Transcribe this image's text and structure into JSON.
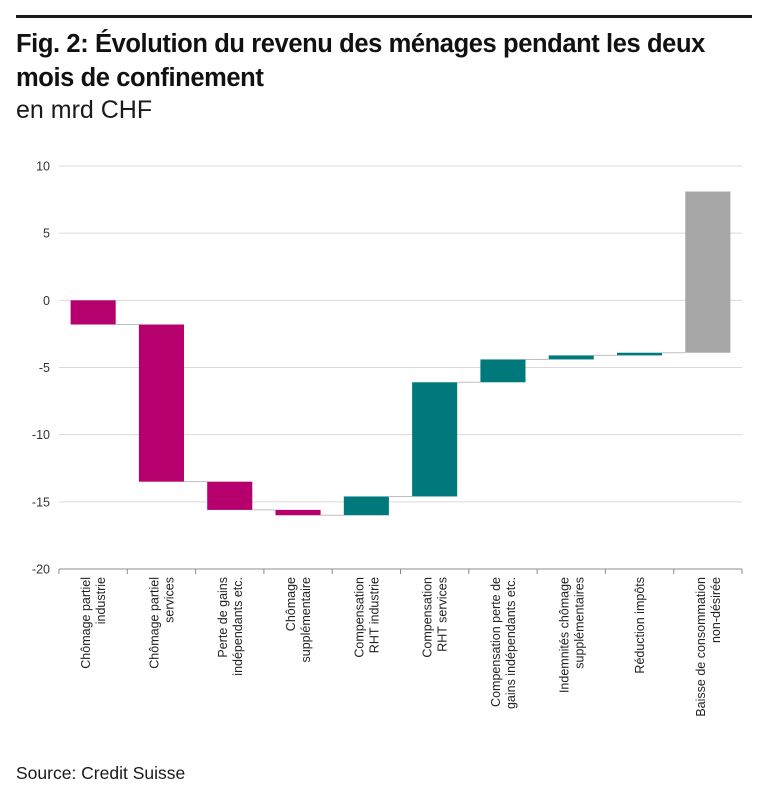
{
  "figure": {
    "title": "Fig. 2: Évolution du revenu des ménages pendant les deux mois de confinement",
    "subtitle": "en mrd CHF",
    "source": "Source: Credit Suisse"
  },
  "colors": {
    "magenta": "#b5006e",
    "teal": "#00797c",
    "gray": "#a6a6a6",
    "gridline": "#d9d9d9",
    "connector": "#bfbfbf"
  },
  "chart_data": {
    "type": "bar",
    "subtype": "waterfall",
    "ylim": [
      -20,
      10
    ],
    "yticks": [
      10,
      5,
      0,
      -5,
      -10,
      -15,
      -20
    ],
    "grid": true,
    "xlabel": "",
    "ylabel": "",
    "categories": [
      [
        "Chômage partiel",
        "industrie"
      ],
      [
        "Chômage partiel",
        "services"
      ],
      [
        "Perte de gains",
        "indépendants etc."
      ],
      [
        "Chômage",
        "supplémentaire"
      ],
      [
        "Compensation",
        "RHT industrie"
      ],
      [
        "Compensation",
        "RHT services"
      ],
      [
        "Compensation perte de",
        "gains indépendants etc."
      ],
      [
        "Indemnités chômage",
        "supplémentaires"
      ],
      [
        "Réduction impôts"
      ],
      [
        "Baisse de consommation",
        "non-désirée"
      ]
    ],
    "bars": [
      {
        "start": 0,
        "end": -1.8,
        "color": "magenta"
      },
      {
        "start": -1.8,
        "end": -13.5,
        "color": "magenta"
      },
      {
        "start": -13.5,
        "end": -15.6,
        "color": "magenta"
      },
      {
        "start": -15.6,
        "end": -16.0,
        "color": "magenta"
      },
      {
        "start": -16.0,
        "end": -14.6,
        "color": "teal"
      },
      {
        "start": -14.6,
        "end": -6.1,
        "color": "teal"
      },
      {
        "start": -6.1,
        "end": -4.4,
        "color": "teal"
      },
      {
        "start": -4.4,
        "end": -4.1,
        "color": "teal"
      },
      {
        "start": -4.1,
        "end": -3.9,
        "color": "teal"
      },
      {
        "start": -3.9,
        "end": 8.1,
        "color": "gray"
      }
    ]
  }
}
